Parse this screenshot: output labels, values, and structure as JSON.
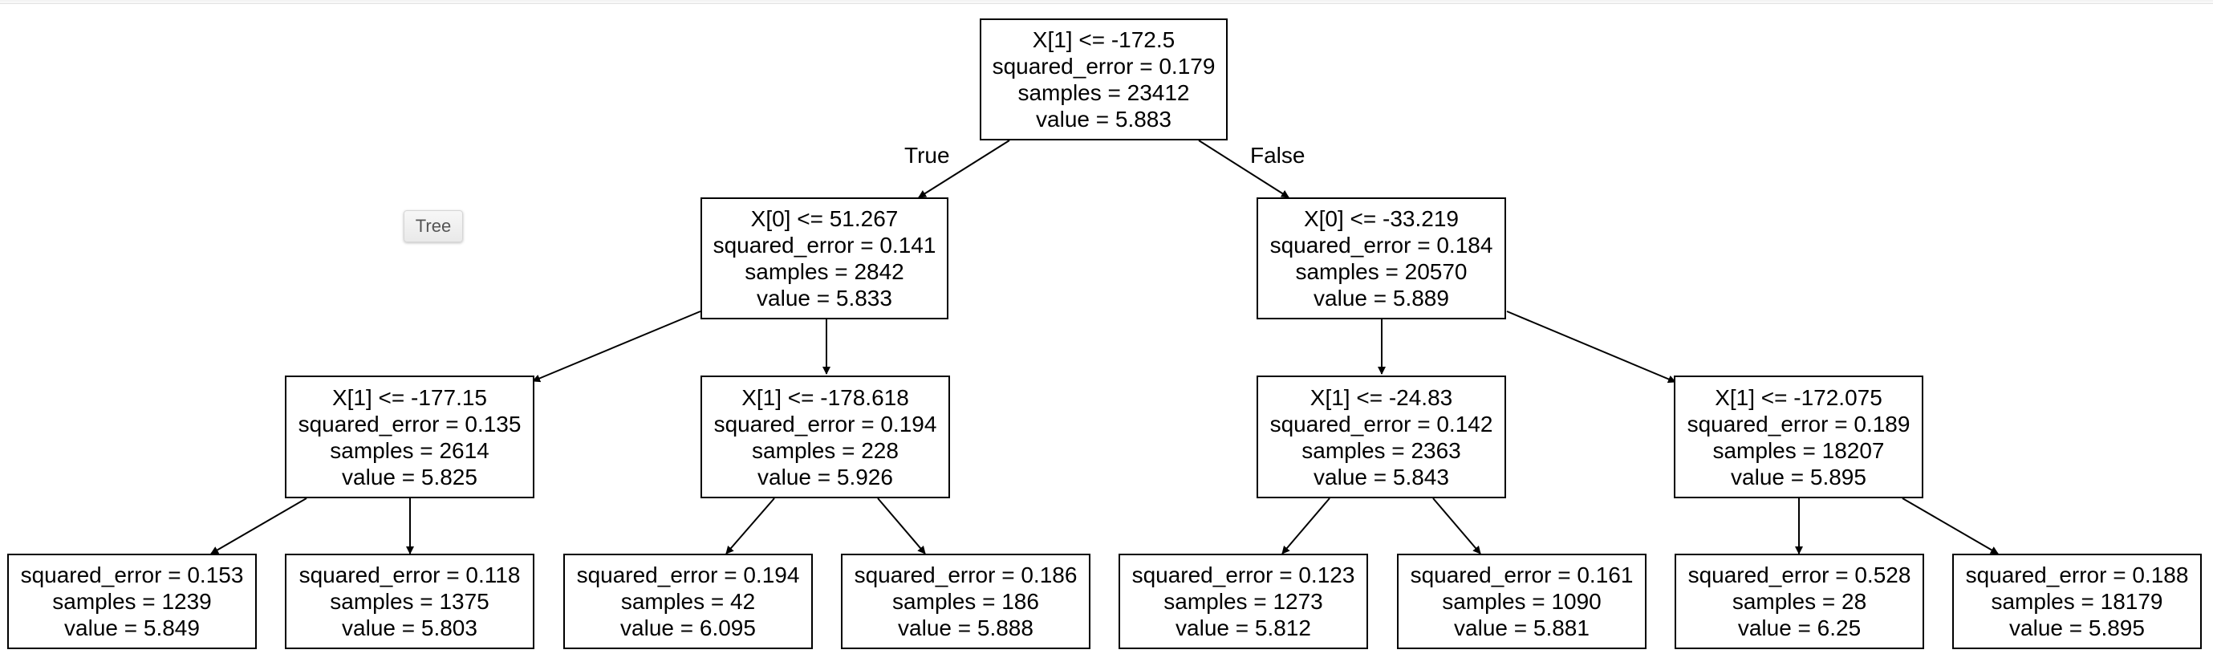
{
  "tooltip": {
    "label": "Tree"
  },
  "edge_labels": {
    "true_label": "True",
    "false_label": "False"
  },
  "nodes": {
    "root": {
      "condition": "X[1] <= -172.5",
      "error": "squared_error = 0.179",
      "samples": "samples = 23412",
      "value": "value = 5.883"
    },
    "n1": {
      "condition": "X[0] <= 51.267",
      "error": "squared_error = 0.141",
      "samples": "samples = 2842",
      "value": "value = 5.833"
    },
    "n2": {
      "condition": "X[0] <= -33.219",
      "error": "squared_error = 0.184",
      "samples": "samples = 20570",
      "value": "value = 5.889"
    },
    "n3": {
      "condition": "X[1] <= -177.15",
      "error": "squared_error = 0.135",
      "samples": "samples = 2614",
      "value": "value = 5.825"
    },
    "n4": {
      "condition": "X[1] <= -178.618",
      "error": "squared_error = 0.194",
      "samples": "samples = 228",
      "value": "value = 5.926"
    },
    "n5": {
      "condition": "X[1] <= -24.83",
      "error": "squared_error = 0.142",
      "samples": "samples = 2363",
      "value": "value = 5.843"
    },
    "n6": {
      "condition": "X[1] <= -172.075",
      "error": "squared_error = 0.189",
      "samples": "samples = 18207",
      "value": "value = 5.895"
    },
    "leaf1": {
      "error": "squared_error = 0.153",
      "samples": "samples = 1239",
      "value": "value = 5.849"
    },
    "leaf2": {
      "error": "squared_error = 0.118",
      "samples": "samples = 1375",
      "value": "value = 5.803"
    },
    "leaf3": {
      "error": "squared_error = 0.194",
      "samples": "samples = 42",
      "value": "value = 6.095"
    },
    "leaf4": {
      "error": "squared_error = 0.186",
      "samples": "samples = 186",
      "value": "value = 5.888"
    },
    "leaf5": {
      "error": "squared_error = 0.123",
      "samples": "samples = 1273",
      "value": "value = 5.812"
    },
    "leaf6": {
      "error": "squared_error = 0.161",
      "samples": "samples = 1090",
      "value": "value = 5.881"
    },
    "leaf7": {
      "error": "squared_error = 0.528",
      "samples": "samples = 28",
      "value": "value = 6.25"
    },
    "leaf8": {
      "error": "squared_error = 0.188",
      "samples": "samples = 18179",
      "value": "value = 5.895"
    }
  }
}
